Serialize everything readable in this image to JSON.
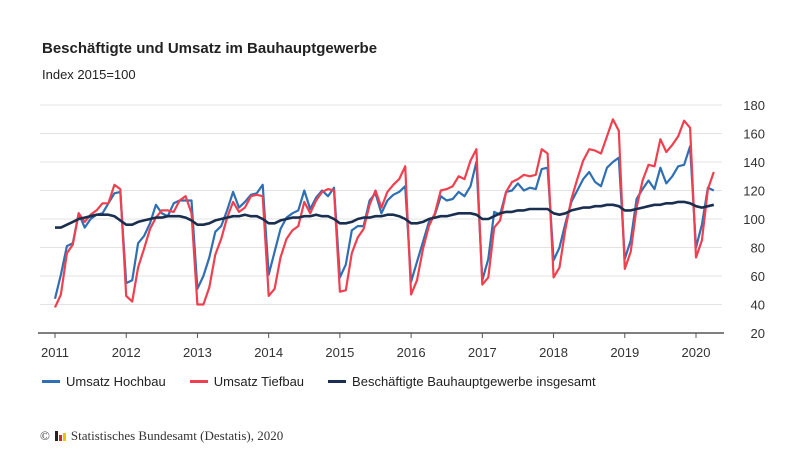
{
  "chart_data": {
    "type": "line",
    "title": "Beschäftigte und Umsatz im Bauhauptgewerbe",
    "subtitle": "Index 2015=100",
    "x_start": "2011-01",
    "x_frequency": "monthly",
    "xticks": [
      "2011",
      "2012",
      "2013",
      "2014",
      "2015",
      "2016",
      "2017",
      "2018",
      "2019",
      "2020"
    ],
    "yticks": [
      20,
      40,
      60,
      80,
      100,
      120,
      140,
      160,
      180
    ],
    "ylim": [
      20,
      180
    ],
    "grid": true,
    "yaxis_side": "right",
    "legend": "bottom",
    "series": [
      {
        "name": "Umsatz Hochbau",
        "color": "#2f6fb3",
        "values": [
          44,
          61,
          81,
          83,
          104,
          94,
          100,
          103,
          104,
          111,
          118,
          119,
          55,
          57,
          83,
          88,
          97,
          110,
          104,
          102,
          111,
          113,
          113,
          113,
          51,
          60,
          73,
          91,
          95,
          106,
          119,
          108,
          112,
          117,
          118,
          124,
          61,
          77,
          93,
          101,
          104,
          106,
          120,
          107,
          115,
          120,
          116,
          122,
          59,
          68,
          92,
          95,
          95,
          113,
          118,
          104,
          113,
          117,
          119,
          123,
          56,
          70,
          84,
          98,
          103,
          116,
          113,
          114,
          119,
          116,
          123,
          140,
          57,
          72,
          105,
          103,
          119,
          120,
          125,
          120,
          122,
          121,
          135,
          136,
          71,
          80,
          97,
          112,
          120,
          128,
          133,
          126,
          123,
          136,
          140,
          143,
          72,
          85,
          114,
          121,
          127,
          121,
          136,
          125,
          130,
          137,
          138,
          151,
          80,
          96,
          122,
          120
        ]
      },
      {
        "name": "Umsatz Tiefbau",
        "color": "#f0404f",
        "values": [
          38,
          47,
          76,
          82,
          104,
          98,
          103,
          106,
          111,
          111,
          124,
          121,
          46,
          42,
          66,
          79,
          93,
          101,
          106,
          106,
          105,
          113,
          116,
          104,
          40,
          40,
          52,
          75,
          86,
          101,
          112,
          105,
          108,
          116,
          117,
          116,
          46,
          51,
          73,
          86,
          92,
          95,
          112,
          104,
          113,
          119,
          121,
          120,
          49,
          50,
          76,
          87,
          93,
          110,
          120,
          108,
          119,
          124,
          128,
          137,
          47,
          57,
          79,
          95,
          104,
          120,
          121,
          123,
          130,
          128,
          141,
          149,
          54,
          59,
          94,
          99,
          119,
          126,
          128,
          131,
          130,
          131,
          149,
          146,
          59,
          66,
          93,
          114,
          128,
          141,
          149,
          148,
          146,
          158,
          170,
          162,
          65,
          77,
          108,
          127,
          138,
          137,
          156,
          147,
          152,
          158,
          169,
          164,
          73,
          85,
          121,
          133
        ]
      },
      {
        "name": "Beschäftigte Bauhauptgewerbe insgesamt",
        "color": "#1a2f4f",
        "values": [
          94,
          94,
          96,
          98,
          100,
          101,
          102,
          103,
          103,
          103,
          102,
          99,
          96,
          96,
          98,
          99,
          100,
          101,
          101,
          102,
          102,
          102,
          101,
          99,
          96,
          96,
          97,
          99,
          100,
          101,
          102,
          102,
          103,
          102,
          102,
          100,
          97,
          97,
          99,
          100,
          101,
          101,
          102,
          102,
          103,
          102,
          102,
          100,
          97,
          97,
          98,
          100,
          101,
          101,
          102,
          102,
          103,
          103,
          102,
          100,
          97,
          97,
          98,
          100,
          101,
          102,
          102,
          103,
          104,
          104,
          104,
          103,
          100,
          100,
          102,
          104,
          105,
          105,
          106,
          106,
          107,
          107,
          107,
          107,
          104,
          103,
          104,
          106,
          107,
          108,
          108,
          109,
          109,
          110,
          110,
          109,
          106,
          106,
          107,
          108,
          109,
          110,
          110,
          111,
          111,
          112,
          112,
          111,
          109,
          108,
          109,
          110
        ]
      }
    ]
  },
  "footer": {
    "copyright": "©",
    "source": "Statistisches Bundesamt (Destatis), 2020",
    "logo_colors": [
      "#222222",
      "#d9232e",
      "#f2c300"
    ]
  }
}
